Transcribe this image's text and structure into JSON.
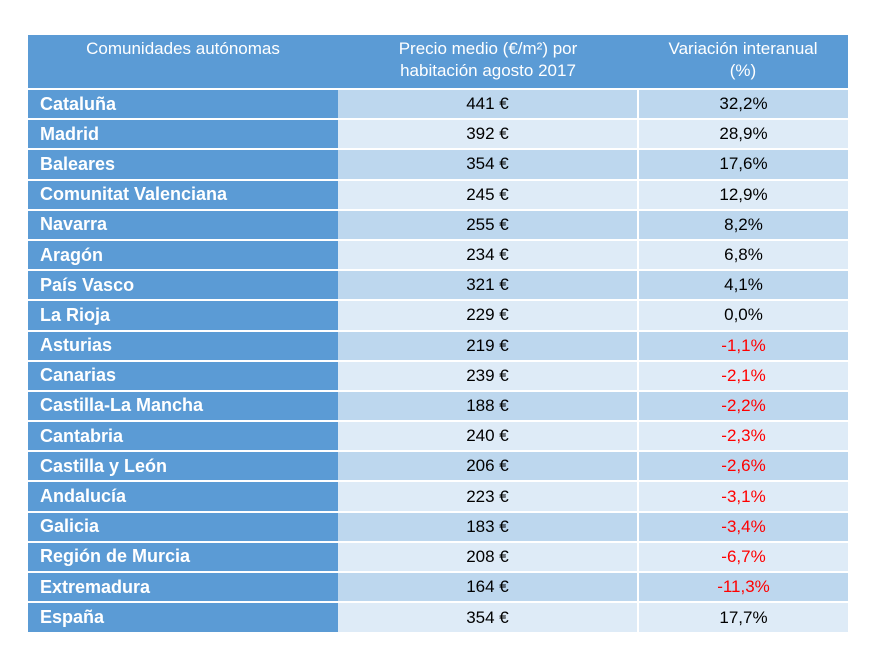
{
  "headers": {
    "region": "Comunidades autónomas",
    "price_line1": "Precio medio (€/m²) por",
    "price_line2": "habitación agosto 2017",
    "variation_line1": "Variación interanual",
    "variation_line2": "(%)"
  },
  "rows": [
    {
      "region": "Cataluña",
      "price": "441 €",
      "variation": "32,2%",
      "negative": false
    },
    {
      "region": "Madrid",
      "price": "392 €",
      "variation": "28,9%",
      "negative": false
    },
    {
      "region": "Baleares",
      "price": "354 €",
      "variation": "17,6%",
      "negative": false
    },
    {
      "region": "Comunitat Valenciana",
      "price": "245 €",
      "variation": "12,9%",
      "negative": false
    },
    {
      "region": "Navarra",
      "price": "255 €",
      "variation": "8,2%",
      "negative": false
    },
    {
      "region": "Aragón",
      "price": "234 €",
      "variation": "6,8%",
      "negative": false
    },
    {
      "region": "País Vasco",
      "price": "321 €",
      "variation": "4,1%",
      "negative": false
    },
    {
      "region": "La Rioja",
      "price": "229 €",
      "variation": "0,0%",
      "negative": false
    },
    {
      "region": "Asturias",
      "price": "219 €",
      "variation": "-1,1%",
      "negative": true
    },
    {
      "region": "Canarias",
      "price": "239 €",
      "variation": "-2,1%",
      "negative": true
    },
    {
      "region": "Castilla-La Mancha",
      "price": "188 €",
      "variation": "-2,2%",
      "negative": true
    },
    {
      "region": "Cantabria",
      "price": "240 €",
      "variation": "-2,3%",
      "negative": true
    },
    {
      "region": "Castilla y León",
      "price": "206 €",
      "variation": "-2,6%",
      "negative": true
    },
    {
      "region": "Andalucía",
      "price": "223 €",
      "variation": "-3,1%",
      "negative": true
    },
    {
      "region": "Galicia",
      "price": "183 €",
      "variation": "-3,4%",
      "negative": true
    },
    {
      "region": "Región de Murcia",
      "price": "208 €",
      "variation": "-6,7%",
      "negative": true
    },
    {
      "region": "Extremadura",
      "price": "164 €",
      "variation": "-11,3%",
      "negative": true
    },
    {
      "region": "España",
      "price": "354 €",
      "variation": "17,7%",
      "negative": false
    }
  ],
  "colors": {
    "header_bg": "#5b9bd5",
    "row_odd": "#bdd7ee",
    "row_even": "#deebf7",
    "negative_text": "#ff0000"
  }
}
